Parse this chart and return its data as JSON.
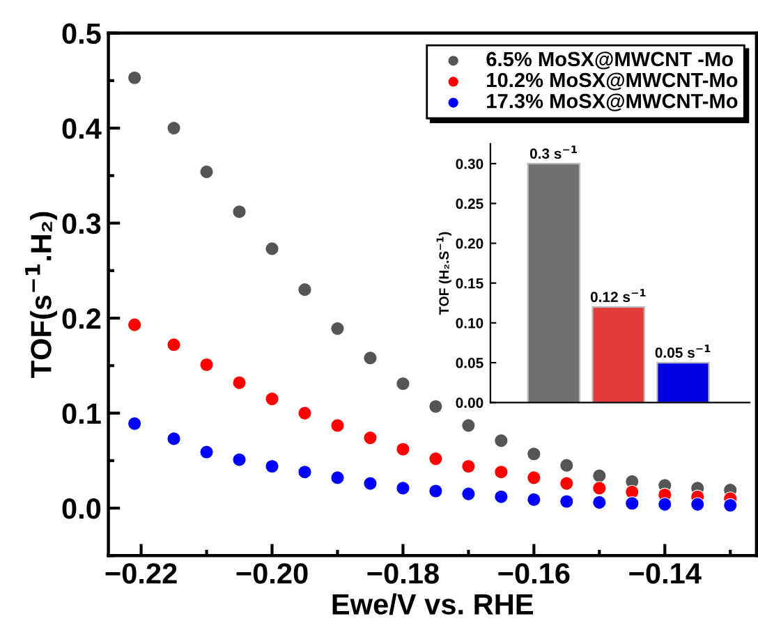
{
  "chart_data": [
    {
      "type": "scatter",
      "xlabel": "Ewe/V vs. RHE",
      "ylabel": "TOF(s$^{−1}$.H₂)",
      "x": [
        -0.221,
        -0.215,
        -0.21,
        -0.205,
        -0.2,
        -0.195,
        -0.19,
        -0.185,
        -0.18,
        -0.175,
        -0.17,
        -0.165,
        -0.16,
        -0.155,
        -0.15,
        -0.145,
        -0.14,
        -0.135,
        -0.13
      ],
      "series": [
        {
          "name": "6.5% MoSX@MWCNT -Mo",
          "color": "#555555",
          "values": [
            0.453,
            0.4,
            0.354,
            0.312,
            0.273,
            0.23,
            0.189,
            0.158,
            0.131,
            0.107,
            0.087,
            0.071,
            0.057,
            0.045,
            0.034,
            0.028,
            0.024,
            0.021,
            0.019
          ]
        },
        {
          "name": "10.2% MoSX@MWCNT-Mo",
          "color": "#ff0000",
          "values": [
            0.193,
            0.172,
            0.151,
            0.132,
            0.115,
            0.1,
            0.087,
            0.074,
            0.062,
            0.052,
            0.044,
            0.038,
            0.032,
            0.026,
            0.021,
            0.017,
            0.014,
            0.012,
            0.01
          ]
        },
        {
          "name": "17.3% MoSX@MWCNT-Mo",
          "color": "#0000ff",
          "values": [
            0.089,
            0.073,
            0.059,
            0.051,
            0.044,
            0.038,
            0.032,
            0.026,
            0.021,
            0.018,
            0.015,
            0.012,
            0.009,
            0.007,
            0.006,
            0.005,
            0.004,
            0.004,
            0.003
          ]
        }
      ],
      "xlim": [
        -0.225,
        -0.126
      ],
      "xticks": [
        {
          "value": -0.22,
          "label": "−0.22"
        },
        {
          "value": -0.2,
          "label": "−0.20"
        },
        {
          "value": -0.18,
          "label": "−0.18"
        },
        {
          "value": -0.16,
          "label": "−0.16"
        },
        {
          "value": -0.14,
          "label": "−0.14"
        }
      ],
      "ylim": [
        -0.05,
        0.5
      ],
      "yticks": [
        {
          "value": 0,
          "label": "0.0"
        },
        0.1,
        0.2,
        0.3,
        0.4,
        0.5
      ],
      "marker": "circle",
      "legend": "top right"
    },
    {
      "type": "bar",
      "ylabel": "TOF (H₂.S$^{−1}$)",
      "categories": [
        null,
        null,
        null
      ],
      "values": [
        0.3,
        0.12,
        0.05
      ],
      "colors": [
        "#707070",
        "#e03a3a",
        "#0000e0"
      ],
      "value_labels": [
        "0.3 s$^{−1}$",
        "0.12 s$^{−1}$",
        "0.05 s$^{−1}$"
      ],
      "ylim": [
        0,
        0.325
      ],
      "yticks": [
        {
          "value": 0,
          "label": "0.00"
        },
        {
          "value": 0.05,
          "label": "0.05"
        },
        {
          "value": 0.1,
          "label": "0.10"
        },
        {
          "value": 0.15,
          "label": "0.15"
        },
        {
          "value": 0.2,
          "label": "0.20"
        },
        {
          "value": 0.25,
          "label": "0.25"
        },
        {
          "value": 0.3,
          "label": "0.30"
        }
      ],
      "tick_labels": "y"
    }
  ]
}
